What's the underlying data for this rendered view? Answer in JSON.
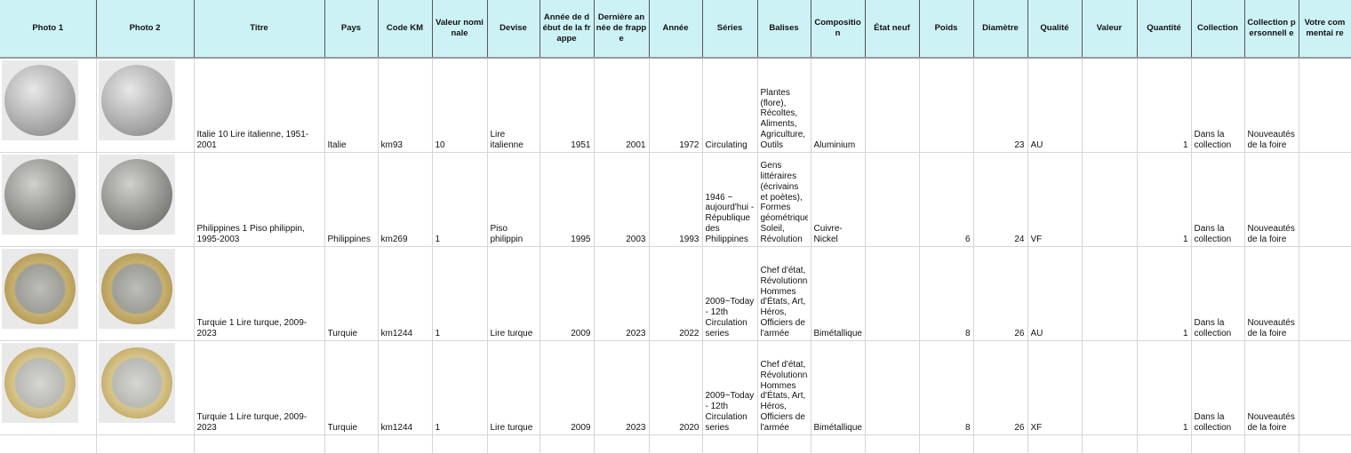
{
  "columns": [
    "Photo 1",
    "Photo 2",
    "Titre",
    "Pays",
    "Code KM",
    "Valeur nominale",
    "Devise",
    "Année de début de la frappe",
    "Dernière année de frappe",
    "Année",
    "Séries",
    "Balises",
    "Compositio n",
    "État neuf",
    "Poids",
    "Diamètre",
    "Qualité",
    "Valeur",
    "Quantité",
    "Collection",
    "Collection personnell e",
    "Votre commentai re"
  ],
  "rows": [
    {
      "photo1": "alu",
      "photo2": "alu",
      "titre": "Italie 10 Lire italienne, 1951-2001",
      "pays": "Italie",
      "code": "km93",
      "valeur_nominale": "10",
      "devise": "Lire italienne",
      "debut": "1951",
      "derniere": "2001",
      "annee": "1972",
      "series": "Circulating",
      "balises": "Plantes (flore), Récoltes, Aliments, Agriculture, Outils",
      "composition": "Aluminium",
      "etat": "",
      "poids": "",
      "diametre": "23",
      "qualite": "AU",
      "valeur": "",
      "quantite": "1",
      "collection": "Dans la collection",
      "perso": "Nouveautés de la foire",
      "commentaire": ""
    },
    {
      "photo1": "cuni",
      "photo2": "cuni",
      "titre": "Philippines 1 Piso philippin, 1995-2003",
      "pays": "Philippines",
      "code": "km269",
      "valeur_nominale": "1",
      "devise": "Piso philippin",
      "debut": "1995",
      "derniere": "2003",
      "annee": "1993",
      "series": "1946 ~ aujourd'hui - République des Philippines",
      "balises": "Gens littéraires (écrivains et poètes), Formes géométriques, Soleil, Révolution",
      "composition": "Cuivre-Nickel",
      "etat": "",
      "poids": "6",
      "diametre": "24",
      "qualite": "VF",
      "valeur": "",
      "quantite": "1",
      "collection": "Dans la collection",
      "perso": "Nouveautés de la foire",
      "commentaire": ""
    },
    {
      "photo1": "bim",
      "photo2": "bim",
      "titre": "Turquie 1 Lire turque, 2009-2023",
      "pays": "Turquie",
      "code": "km1244",
      "valeur_nominale": "1",
      "devise": "Lire turque",
      "debut": "2009",
      "derniere": "2023",
      "annee": "2022",
      "series": "2009~Today - 12th Circulation series",
      "balises": "Chef d'état, Révolutionnaires, Hommes d'États, Art, Héros, Officiers de l'armée",
      "composition": "Bimétallique",
      "etat": "",
      "poids": "8",
      "diametre": "26",
      "qualite": "AU",
      "valeur": "",
      "quantite": "1",
      "collection": "Dans la collection",
      "perso": "Nouveautés de la foire",
      "commentaire": ""
    },
    {
      "photo1": "bim2",
      "photo2": "bim2",
      "titre": "Turquie 1 Lire turque, 2009-2023",
      "pays": "Turquie",
      "code": "km1244",
      "valeur_nominale": "1",
      "devise": "Lire turque",
      "debut": "2009",
      "derniere": "2023",
      "annee": "2020",
      "series": "2009~Today - 12th Circulation series",
      "balises": "Chef d'état, Révolutionnaires, Hommes d'États, Art, Héros, Officiers de l'armée",
      "composition": "Bimétallique",
      "etat": "",
      "poids": "8",
      "diametre": "26",
      "qualite": "XF",
      "valeur": "",
      "quantite": "1",
      "collection": "Dans la collection",
      "perso": "Nouveautés de la foire",
      "commentaire": ""
    }
  ]
}
